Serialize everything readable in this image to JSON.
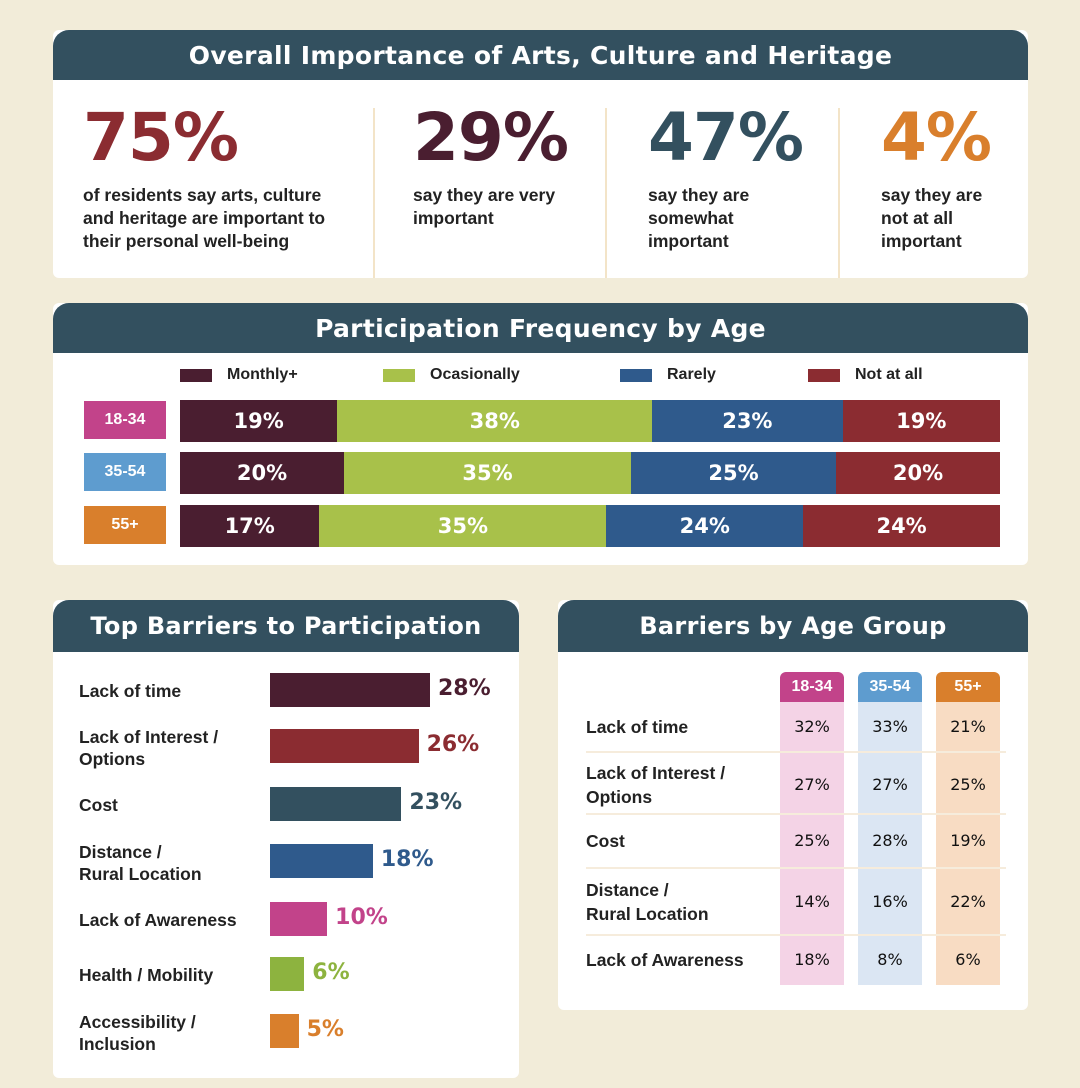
{
  "overall": {
    "title": "Overall Importance of Arts, Culture and Heritage",
    "stats": [
      {
        "value": "75%",
        "text": "of residents say arts, culture and heritage are important to their personal well-being",
        "color": "#8b2c31"
      },
      {
        "value": "29%",
        "text": "say they are very important",
        "color": "#4a1e30"
      },
      {
        "value": "47%",
        "text": "say they are somewhat important",
        "color": "#33505f"
      },
      {
        "value": "4%",
        "text": "say they are not at all important",
        "color": "#d97f2c"
      }
    ]
  },
  "participation": {
    "title": "Participation Frequency by Age",
    "legend": [
      {
        "label": "Monthly+",
        "color": "#4a1e30"
      },
      {
        "label": "Ocasionally",
        "color": "#a8c14a"
      },
      {
        "label": "Rarely",
        "color": "#2f5a8c"
      },
      {
        "label": "Not at all",
        "color": "#8b2c31"
      }
    ],
    "groups": [
      {
        "label": "18-34",
        "color": "#c2438a"
      },
      {
        "label": "35-54",
        "color": "#5e9ccf"
      },
      {
        "label": "55+",
        "color": "#d97f2c"
      }
    ]
  },
  "barriers": {
    "title": "Top Barriers to Participation",
    "items": [
      {
        "label": "Lack of time",
        "value_label": "28%",
        "color": "#4a1e30"
      },
      {
        "label": "Lack of Interest / Options",
        "value_label": "26%",
        "color": "#8b2c31"
      },
      {
        "label": "Cost",
        "value_label": "23%",
        "color": "#33505f"
      },
      {
        "label": "Distance / Rural Location",
        "value_label": "18%",
        "color": "#2f5a8c"
      },
      {
        "label": "Lack of Awareness",
        "value_label": "10%",
        "color": "#c2438a"
      },
      {
        "label": "Health / Mobility",
        "value_label": "6%",
        "color": "#8db33f"
      },
      {
        "label": "Accessibility / Inclusion",
        "value_label": "5%",
        "color": "#d97f2c"
      }
    ]
  },
  "by_age": {
    "title": "Barriers by Age Group",
    "columns": [
      {
        "label": "18-34",
        "color": "#c2438a",
        "bg": "#f4d3e6"
      },
      {
        "label": "35-54",
        "color": "#5e9ccf",
        "bg": "#dbe6f3"
      },
      {
        "label": "55+",
        "color": "#d97f2c",
        "bg": "#f8dcc3"
      }
    ],
    "rows": [
      {
        "label": "Lack of time",
        "values": [
          "32%",
          "33%",
          "21%"
        ]
      },
      {
        "label": "Lack of Interest / Options",
        "values": [
          "27%",
          "27%",
          "25%"
        ]
      },
      {
        "label": "Cost",
        "values": [
          "25%",
          "28%",
          "19%"
        ]
      },
      {
        "label": "Distance / Rural Location",
        "values": [
          "14%",
          "16%",
          "22%"
        ]
      },
      {
        "label": "Lack of Awareness",
        "values": [
          "18%",
          "8%",
          "6%"
        ]
      }
    ]
  },
  "chart_data": [
    {
      "type": "bar",
      "stacked": true,
      "orientation": "horizontal",
      "title": "Participation Frequency by Age",
      "categories": [
        "18-34",
        "35-54",
        "55+"
      ],
      "series": [
        {
          "name": "Monthly+",
          "values": [
            19,
            20,
            17
          ]
        },
        {
          "name": "Ocasionally",
          "values": [
            38,
            35,
            35
          ]
        },
        {
          "name": "Rarely",
          "values": [
            23,
            25,
            24
          ]
        },
        {
          "name": "Not at all",
          "values": [
            19,
            20,
            24
          ]
        }
      ],
      "legend": "top"
    },
    {
      "type": "bar",
      "orientation": "horizontal",
      "title": "Top Barriers to Participation",
      "categories": [
        "Lack of time",
        "Lack of Interest / Options",
        "Cost",
        "Distance / Rural Location",
        "Lack of Awareness",
        "Health / Mobility",
        "Accessibility / Inclusion"
      ],
      "values": [
        28,
        26,
        23,
        18,
        10,
        6,
        5
      ]
    },
    {
      "type": "table",
      "title": "Barriers by Age Group",
      "columns": [
        "18-34",
        "35-54",
        "55+"
      ],
      "rows": [
        "Lack of time",
        "Lack of Interest / Options",
        "Cost",
        "Distance / Rural Location",
        "Lack of Awareness"
      ],
      "values": [
        [
          32,
          33,
          21
        ],
        [
          27,
          27,
          25
        ],
        [
          25,
          28,
          19
        ],
        [
          14,
          16,
          22
        ],
        [
          18,
          8,
          6
        ]
      ]
    }
  ]
}
